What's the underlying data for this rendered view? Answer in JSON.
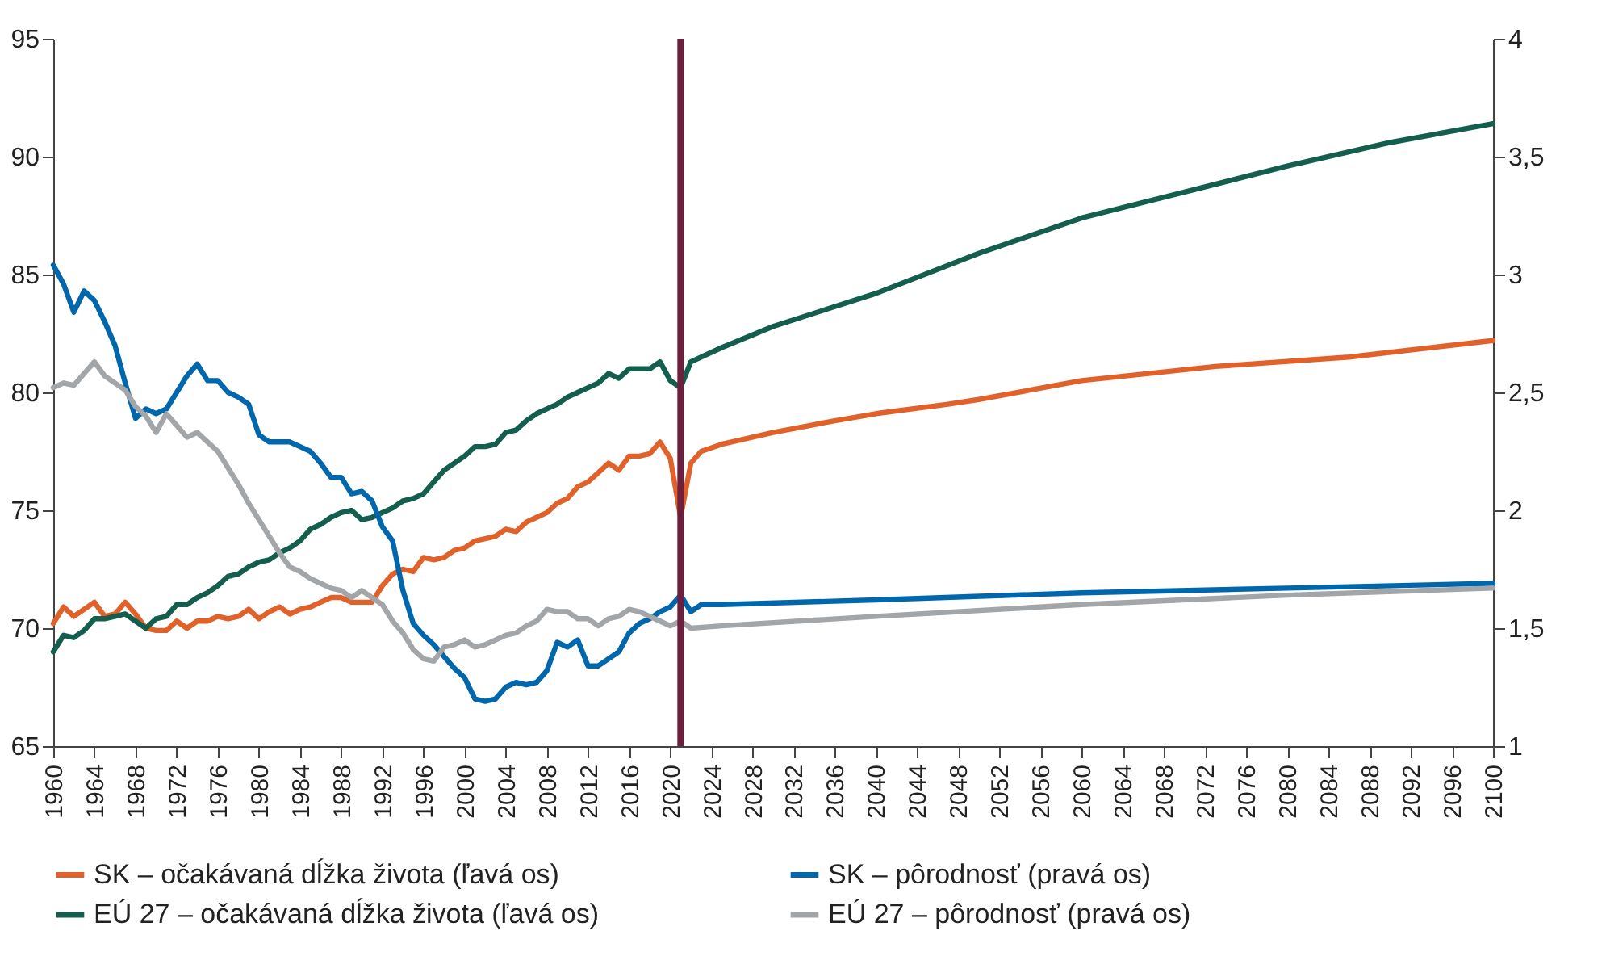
{
  "chart_data": {
    "type": "line",
    "xlim": [
      1960,
      2100
    ],
    "xticks": [
      1960,
      1964,
      1968,
      1972,
      1976,
      1980,
      1984,
      1988,
      1992,
      1996,
      2000,
      2004,
      2008,
      2012,
      2016,
      2020,
      2024,
      2028,
      2032,
      2036,
      2040,
      2044,
      2048,
      2052,
      2056,
      2060,
      2064,
      2068,
      2072,
      2076,
      2080,
      2084,
      2088,
      2092,
      2096,
      2100
    ],
    "ylim": [
      65,
      95
    ],
    "yticks": [
      65,
      70,
      75,
      80,
      85,
      90,
      95
    ],
    "y2lim": [
      1,
      4
    ],
    "y2ticks": [
      1,
      {
        "value": 1.5,
        "label": "1,5"
      },
      2,
      {
        "value": 2.5,
        "label": "2,5"
      },
      3,
      {
        "value": 3.5,
        "label": "3,5"
      },
      4
    ],
    "legend": "bottom",
    "ref_lines": [
      {
        "axis": "x",
        "value": 2021,
        "color": "#6e1f3e"
      }
    ],
    "series": [
      {
        "name": "SK – očakávaná dĺžka života (ľavá os)",
        "color": "#e0622a",
        "x": [
          1960,
          1961,
          1962,
          1963,
          1964,
          1965,
          1966,
          1967,
          1968,
          1969,
          1970,
          1971,
          1972,
          1973,
          1974,
          1975,
          1976,
          1977,
          1978,
          1979,
          1980,
          1981,
          1982,
          1983,
          1984,
          1985,
          1986,
          1987,
          1988,
          1989,
          1990,
          1991,
          1992,
          1993,
          1994,
          1995,
          1996,
          1997,
          1998,
          1999,
          2000,
          2001,
          2002,
          2003,
          2004,
          2005,
          2006,
          2007,
          2008,
          2009,
          2010,
          2011,
          2012,
          2013,
          2014,
          2015,
          2016,
          2017,
          2018,
          2019,
          2020,
          2021,
          2022,
          2023,
          2025,
          2030,
          2036,
          2040,
          2047,
          2050,
          2060,
          2073,
          2086,
          2100
        ],
        "values": [
          70.2,
          70.9,
          70.5,
          70.8,
          71.1,
          70.5,
          70.6,
          71.1,
          70.6,
          70.0,
          69.9,
          69.9,
          70.3,
          70.0,
          70.3,
          70.3,
          70.5,
          70.4,
          70.5,
          70.8,
          70.4,
          70.7,
          70.9,
          70.6,
          70.8,
          70.9,
          71.1,
          71.3,
          71.3,
          71.1,
          71.1,
          71.1,
          71.8,
          72.3,
          72.5,
          72.4,
          73.0,
          72.9,
          73.0,
          73.3,
          73.4,
          73.7,
          73.8,
          73.9,
          74.2,
          74.1,
          74.5,
          74.7,
          74.9,
          75.3,
          75.5,
          76.0,
          76.2,
          76.6,
          77.0,
          76.7,
          77.3,
          77.3,
          77.4,
          77.9,
          77.2,
          74.7,
          77.0,
          77.5,
          77.8,
          78.3,
          78.8,
          79.1,
          79.5,
          79.7,
          80.5,
          81.1,
          81.5,
          82.2
        ]
      },
      {
        "name": "SK – pôrodnosť (pravá os)",
        "color": "#0067ac",
        "axis": "y2",
        "x": [
          1960,
          1961,
          1962,
          1963,
          1964,
          1965,
          1966,
          1967,
          1968,
          1969,
          1970,
          1971,
          1972,
          1973,
          1974,
          1975,
          1976,
          1977,
          1978,
          1979,
          1980,
          1981,
          1982,
          1983,
          1984,
          1985,
          1986,
          1987,
          1988,
          1989,
          1990,
          1991,
          1992,
          1993,
          1994,
          1995,
          1996,
          1997,
          1998,
          1999,
          2000,
          2001,
          2002,
          2003,
          2004,
          2005,
          2006,
          2007,
          2008,
          2009,
          2010,
          2011,
          2012,
          2013,
          2014,
          2015,
          2016,
          2017,
          2018,
          2019,
          2020,
          2021,
          2022,
          2023,
          2025,
          2040,
          2060,
          2080,
          2100
        ],
        "values": [
          3.04,
          2.96,
          2.84,
          2.93,
          2.89,
          2.8,
          2.7,
          2.54,
          2.39,
          2.43,
          2.41,
          2.43,
          2.5,
          2.57,
          2.62,
          2.55,
          2.55,
          2.5,
          2.48,
          2.45,
          2.32,
          2.29,
          2.29,
          2.29,
          2.27,
          2.25,
          2.2,
          2.14,
          2.14,
          2.07,
          2.08,
          2.04,
          1.93,
          1.87,
          1.66,
          1.52,
          1.47,
          1.43,
          1.38,
          1.33,
          1.29,
          1.2,
          1.19,
          1.2,
          1.25,
          1.27,
          1.26,
          1.27,
          1.32,
          1.44,
          1.42,
          1.45,
          1.34,
          1.34,
          1.37,
          1.4,
          1.48,
          1.52,
          1.54,
          1.57,
          1.59,
          1.64,
          1.57,
          1.6,
          1.6,
          1.62,
          1.65,
          1.67,
          1.69
        ]
      },
      {
        "name": "EÚ 27 – očakávaná dĺžka života (ľavá os)",
        "color": "#135e4c",
        "x": [
          1960,
          1961,
          1962,
          1963,
          1964,
          1965,
          1966,
          1967,
          1968,
          1969,
          1970,
          1971,
          1972,
          1973,
          1974,
          1975,
          1976,
          1977,
          1978,
          1979,
          1980,
          1981,
          1982,
          1983,
          1984,
          1985,
          1986,
          1987,
          1988,
          1989,
          1990,
          1991,
          1992,
          1993,
          1994,
          1995,
          1996,
          1997,
          1998,
          1999,
          2000,
          2001,
          2002,
          2003,
          2004,
          2005,
          2006,
          2007,
          2008,
          2009,
          2010,
          2011,
          2012,
          2013,
          2014,
          2015,
          2016,
          2017,
          2018,
          2019,
          2020,
          2021,
          2022,
          2025,
          2030,
          2035,
          2040,
          2050,
          2060,
          2070,
          2080,
          2090,
          2100
        ],
        "values": [
          69.0,
          69.7,
          69.6,
          69.9,
          70.4,
          70.4,
          70.5,
          70.6,
          70.3,
          70.0,
          70.4,
          70.5,
          71.0,
          71.0,
          71.3,
          71.5,
          71.8,
          72.2,
          72.3,
          72.6,
          72.8,
          72.9,
          73.2,
          73.4,
          73.7,
          74.2,
          74.4,
          74.7,
          74.9,
          75.0,
          74.6,
          74.7,
          74.9,
          75.1,
          75.4,
          75.5,
          75.7,
          76.2,
          76.7,
          77.0,
          77.3,
          77.7,
          77.7,
          77.8,
          78.3,
          78.4,
          78.8,
          79.1,
          79.3,
          79.5,
          79.8,
          80.0,
          80.2,
          80.4,
          80.8,
          80.6,
          81.0,
          81.0,
          81.0,
          81.3,
          80.5,
          80.2,
          81.3,
          81.9,
          82.8,
          83.5,
          84.2,
          85.9,
          87.4,
          88.5,
          89.6,
          90.6,
          91.4
        ]
      },
      {
        "name": "EÚ 27 – pôrodnosť (pravá os)",
        "color": "#a2a6a8",
        "axis": "y2",
        "x": [
          1960,
          1961,
          1962,
          1963,
          1964,
          1965,
          1966,
          1967,
          1968,
          1969,
          1970,
          1971,
          1972,
          1973,
          1974,
          1975,
          1976,
          1977,
          1978,
          1979,
          1980,
          1981,
          1982,
          1983,
          1984,
          1985,
          1986,
          1987,
          1988,
          1989,
          1990,
          1991,
          1992,
          1993,
          1994,
          1995,
          1996,
          1997,
          1998,
          1999,
          2000,
          2001,
          2002,
          2003,
          2004,
          2005,
          2006,
          2007,
          2008,
          2009,
          2010,
          2011,
          2012,
          2013,
          2014,
          2015,
          2016,
          2017,
          2018,
          2019,
          2020,
          2021,
          2022,
          2025,
          2040,
          2060,
          2080,
          2100
        ],
        "values": [
          2.52,
          2.54,
          2.53,
          2.58,
          2.63,
          2.57,
          2.54,
          2.51,
          2.44,
          2.4,
          2.33,
          2.41,
          2.36,
          2.31,
          2.33,
          2.29,
          2.25,
          2.18,
          2.11,
          2.03,
          1.96,
          1.89,
          1.82,
          1.76,
          1.74,
          1.71,
          1.69,
          1.67,
          1.66,
          1.63,
          1.66,
          1.63,
          1.6,
          1.53,
          1.48,
          1.41,
          1.37,
          1.36,
          1.42,
          1.43,
          1.45,
          1.42,
          1.43,
          1.45,
          1.47,
          1.48,
          1.51,
          1.53,
          1.58,
          1.57,
          1.57,
          1.54,
          1.54,
          1.51,
          1.54,
          1.55,
          1.58,
          1.57,
          1.55,
          1.53,
          1.51,
          1.53,
          1.5,
          1.51,
          1.55,
          1.6,
          1.64,
          1.67
        ]
      }
    ]
  }
}
